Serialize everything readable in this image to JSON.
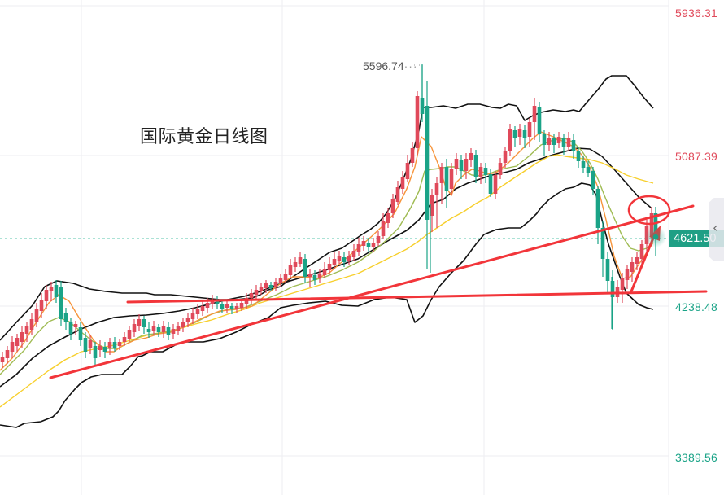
{
  "chart_data": {
    "type": "candlestick",
    "title": "国际黄金日线图",
    "xlabel": "",
    "ylabel": "",
    "ylim": [
      3300,
      6000
    ],
    "y_ticks": [
      "5936.31",
      "5087.39",
      "4238.48",
      "3389.56"
    ],
    "y_tick_colors": [
      "#e0495a",
      "#e0495a",
      "#1aa387",
      "#1aa387"
    ],
    "grid": true,
    "legend": "none",
    "annotations": [
      {
        "type": "label",
        "text": "5596.74",
        "meaning": "period high"
      },
      {
        "type": "price_tag",
        "text": "4621.50",
        "meaning": "last price"
      },
      {
        "type": "trendline",
        "meaning": "rising support line from lower left, through ~4620 at right edge"
      },
      {
        "type": "hline",
        "meaning": "horizontal support ~4260"
      },
      {
        "type": "ellipse",
        "meaning": "highlight of latest candles touching upper trendline"
      },
      {
        "type": "arrow",
        "meaning": "upward arrow from support toward current price"
      }
    ],
    "series_names": [
      "Candles",
      "Bollinger Upper",
      "Bollinger Middle",
      "Bollinger Lower",
      "MA5",
      "MA10",
      "MA30"
    ],
    "last_price": 4621.5,
    "period_high": 5596.74
  },
  "axis": {
    "labels": [
      {
        "text": "5936.31",
        "price": 5936.31,
        "dir": "up"
      },
      {
        "text": "5087.39",
        "price": 5087.39,
        "dir": "up"
      },
      {
        "text": "4238.48",
        "price": 4238.48,
        "dir": "down"
      },
      {
        "text": "3389.56",
        "price": 3389.56,
        "dir": "down"
      }
    ]
  },
  "title": "国际黄金日线图",
  "high_label": "5596.74",
  "last_price_label": "4621.50",
  "colors": {
    "up": "#e0495a",
    "down": "#1aa387",
    "grid": "#f0f0f3",
    "boll": "#111111",
    "ma5": "#f7943a",
    "ma10": "#9fbb52",
    "ma30": "#f7cf2c",
    "annotation": "#f2353a",
    "price_line": "#8fd8c7"
  },
  "side_handle": {
    "icon": "chevron-left-icon",
    "glyph": "‹"
  }
}
